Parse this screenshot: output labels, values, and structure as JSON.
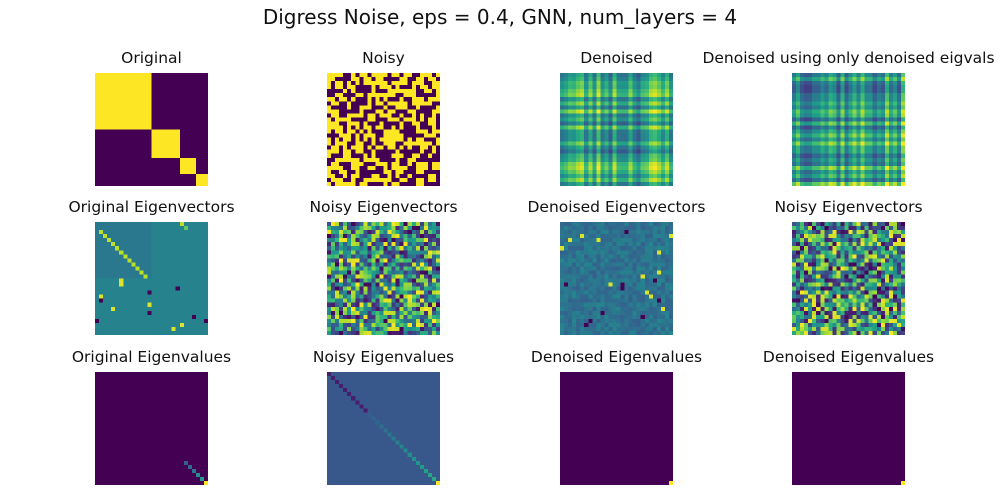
{
  "figure": {
    "title": "Digress Noise, eps = 0.4, GNN, num_layers = 4"
  },
  "chart_data": {
    "type": "heatmap",
    "grid_size": 28,
    "colormap": "viridis",
    "value_range": [
      0,
      1
    ],
    "panels": [
      {
        "title": "Original",
        "pattern": "block_diag",
        "blocks": [
          [
            0,
            14
          ],
          [
            14,
            21
          ],
          [
            21,
            25
          ],
          [
            25,
            28
          ]
        ]
      },
      {
        "title": "Noisy",
        "pattern": "binary_noise",
        "seed": 11
      },
      {
        "title": "Denoised",
        "pattern": "plaid",
        "seed": 23
      },
      {
        "title": "Denoised using only denoised eigvals",
        "pattern": "plaid",
        "seed": 37
      },
      {
        "title": "Original Eigenvectors",
        "pattern": "eigvec_structured",
        "seed": 5
      },
      {
        "title": "Noisy Eigenvectors",
        "pattern": "random",
        "seed": 41
      },
      {
        "title": "Denoised Eigenvectors",
        "pattern": "eigvec_denoised",
        "seed": 53
      },
      {
        "title": "Noisy Eigenvectors",
        "pattern": "random",
        "seed": 67
      },
      {
        "title": "Original Eigenvalues",
        "pattern": "diag_tail",
        "background": 0.0
      },
      {
        "title": "Noisy Eigenvalues",
        "pattern": "diag_ramp",
        "background": 0.27
      },
      {
        "title": "Denoised Eigenvalues",
        "pattern": "corner",
        "background": 0.0
      },
      {
        "title": "Denoised Eigenvalues",
        "pattern": "corner",
        "background": 0.0
      }
    ]
  }
}
